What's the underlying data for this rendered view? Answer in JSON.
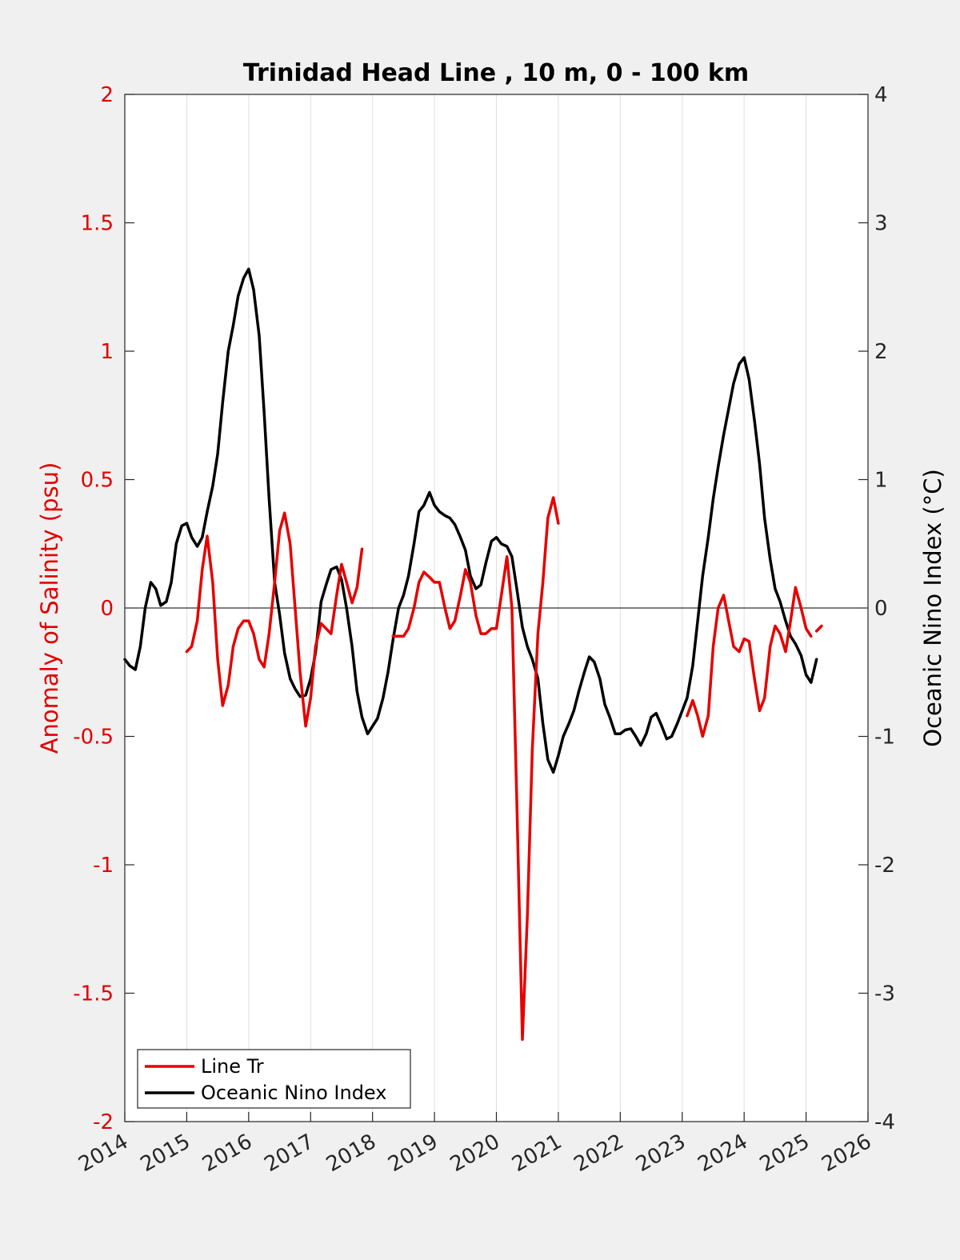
{
  "colors": {
    "figure_background": "#f0f0f0",
    "plot_background": "#ffffff",
    "salinity": "#e60000",
    "oni": "#000000",
    "left_axis": "#e00000",
    "right_axis": "#262626"
  },
  "chart_data": {
    "type": "line",
    "title": "Trinidad Head Line , 10 m, 0 - 100 km",
    "xlabel": "",
    "ylabel": "Anomaly of Salinity (psu)",
    "ylabel_right": "Oceanic Nino Index (°C)",
    "xlim": [
      2014,
      2026
    ],
    "ylim": [
      -2,
      2
    ],
    "ylim_right": [
      -4,
      4
    ],
    "x_ticks": [
      "2014",
      "2015",
      "2016",
      "2017",
      "2018",
      "2019",
      "2020",
      "2021",
      "2022",
      "2023",
      "2024",
      "2025",
      "2026"
    ],
    "y_ticks": [
      "-2",
      "-1.5",
      "-1",
      "-0.5",
      "0",
      "0.5",
      "1",
      "1.5",
      "2"
    ],
    "y_ticks_right": [
      "-4",
      "-3",
      "-2",
      "-1",
      "0",
      "1",
      "2",
      "3",
      "4"
    ],
    "grid": "vertical",
    "zero_line": true,
    "legend_position": "bottom-left",
    "series": [
      {
        "name": "Line Tr",
        "axis": "left",
        "color": "#e60000",
        "segments": [
          [
            [
              2015.0,
              -0.17
            ],
            [
              2015.08,
              -0.15
            ],
            [
              2015.17,
              -0.05
            ],
            [
              2015.25,
              0.15
            ],
            [
              2015.33,
              0.28
            ],
            [
              2015.42,
              0.1
            ],
            [
              2015.5,
              -0.2
            ],
            [
              2015.58,
              -0.38
            ],
            [
              2015.67,
              -0.3
            ],
            [
              2015.75,
              -0.15
            ],
            [
              2015.83,
              -0.08
            ],
            [
              2015.92,
              -0.05
            ],
            [
              2016.0,
              -0.05
            ],
            [
              2016.08,
              -0.1
            ],
            [
              2016.17,
              -0.2
            ],
            [
              2016.25,
              -0.23
            ],
            [
              2016.33,
              -0.1
            ],
            [
              2016.42,
              0.1
            ],
            [
              2016.5,
              0.3
            ],
            [
              2016.58,
              0.37
            ],
            [
              2016.67,
              0.25
            ],
            [
              2016.75,
              0.0
            ],
            [
              2016.83,
              -0.25
            ],
            [
              2016.92,
              -0.46
            ],
            [
              2017.0,
              -0.35
            ],
            [
              2017.08,
              -0.15
            ],
            [
              2017.17,
              -0.06
            ],
            [
              2017.25,
              -0.08
            ],
            [
              2017.33,
              -0.1
            ],
            [
              2017.42,
              0.05
            ],
            [
              2017.5,
              0.17
            ],
            [
              2017.58,
              0.1
            ],
            [
              2017.67,
              0.02
            ],
            [
              2017.75,
              0.08
            ],
            [
              2017.83,
              0.23
            ]
          ],
          [
            [
              2018.33,
              -0.11
            ],
            [
              2018.42,
              -0.11
            ],
            [
              2018.5,
              -0.11
            ],
            [
              2018.58,
              -0.08
            ],
            [
              2018.67,
              0.0
            ],
            [
              2018.75,
              0.1
            ],
            [
              2018.83,
              0.14
            ],
            [
              2018.92,
              0.12
            ],
            [
              2019.0,
              0.1
            ],
            [
              2019.08,
              0.1
            ],
            [
              2019.17,
              0.0
            ],
            [
              2019.25,
              -0.08
            ],
            [
              2019.33,
              -0.05
            ],
            [
              2019.42,
              0.05
            ],
            [
              2019.5,
              0.15
            ],
            [
              2019.58,
              0.1
            ],
            [
              2019.67,
              -0.03
            ],
            [
              2019.75,
              -0.1
            ],
            [
              2019.83,
              -0.1
            ],
            [
              2019.92,
              -0.08
            ],
            [
              2020.0,
              -0.08
            ],
            [
              2020.08,
              0.05
            ],
            [
              2020.17,
              0.2
            ],
            [
              2020.25,
              0.0
            ],
            [
              2020.33,
              -0.75
            ],
            [
              2020.42,
              -1.68
            ],
            [
              2020.5,
              -1.2
            ],
            [
              2020.58,
              -0.55
            ],
            [
              2020.67,
              -0.1
            ],
            [
              2020.75,
              0.1
            ],
            [
              2020.83,
              0.35
            ],
            [
              2020.92,
              0.43
            ],
            [
              2021.0,
              0.33
            ]
          ],
          [
            [
              2023.08,
              -0.42
            ],
            [
              2023.17,
              -0.36
            ],
            [
              2023.25,
              -0.42
            ],
            [
              2023.33,
              -0.5
            ],
            [
              2023.42,
              -0.42
            ],
            [
              2023.5,
              -0.15
            ],
            [
              2023.58,
              0.0
            ],
            [
              2023.67,
              0.05
            ],
            [
              2023.75,
              -0.05
            ],
            [
              2023.83,
              -0.15
            ],
            [
              2023.92,
              -0.17
            ],
            [
              2024.0,
              -0.12
            ],
            [
              2024.08,
              -0.13
            ],
            [
              2024.17,
              -0.28
            ],
            [
              2024.25,
              -0.4
            ],
            [
              2024.33,
              -0.35
            ],
            [
              2024.42,
              -0.15
            ],
            [
              2024.5,
              -0.07
            ],
            [
              2024.58,
              -0.1
            ],
            [
              2024.67,
              -0.17
            ],
            [
              2024.75,
              -0.05
            ],
            [
              2024.83,
              0.08
            ],
            [
              2024.92,
              0.0
            ],
            [
              2025.0,
              -0.08
            ],
            [
              2025.08,
              -0.11
            ]
          ],
          [
            [
              2025.17,
              -0.09
            ],
            [
              2025.25,
              -0.07
            ]
          ]
        ]
      },
      {
        "name": "Oceanic Nino Index",
        "axis": "right",
        "color": "#000000",
        "points": [
          [
            2014.0,
            -0.4
          ],
          [
            2014.08,
            -0.45
          ],
          [
            2014.17,
            -0.48
          ],
          [
            2014.25,
            -0.3
          ],
          [
            2014.33,
            0.0
          ],
          [
            2014.42,
            0.2
          ],
          [
            2014.5,
            0.15
          ],
          [
            2014.58,
            0.02
          ],
          [
            2014.67,
            0.05
          ],
          [
            2014.75,
            0.2
          ],
          [
            2014.83,
            0.5
          ],
          [
            2014.92,
            0.64
          ],
          [
            2015.0,
            0.66
          ],
          [
            2015.08,
            0.55
          ],
          [
            2015.17,
            0.48
          ],
          [
            2015.25,
            0.55
          ],
          [
            2015.33,
            0.75
          ],
          [
            2015.42,
            0.95
          ],
          [
            2015.5,
            1.2
          ],
          [
            2015.58,
            1.6
          ],
          [
            2015.67,
            2.0
          ],
          [
            2015.75,
            2.2
          ],
          [
            2015.83,
            2.43
          ],
          [
            2015.92,
            2.57
          ],
          [
            2016.0,
            2.64
          ],
          [
            2016.08,
            2.48
          ],
          [
            2016.17,
            2.12
          ],
          [
            2016.25,
            1.52
          ],
          [
            2016.33,
            0.85
          ],
          [
            2016.42,
            0.2
          ],
          [
            2016.5,
            -0.05
          ],
          [
            2016.58,
            -0.35
          ],
          [
            2016.67,
            -0.55
          ],
          [
            2016.75,
            -0.63
          ],
          [
            2016.83,
            -0.69
          ],
          [
            2016.92,
            -0.68
          ],
          [
            2017.0,
            -0.55
          ],
          [
            2017.08,
            -0.35
          ],
          [
            2017.17,
            0.05
          ],
          [
            2017.25,
            0.18
          ],
          [
            2017.33,
            0.3
          ],
          [
            2017.42,
            0.32
          ],
          [
            2017.5,
            0.22
          ],
          [
            2017.58,
            0.0
          ],
          [
            2017.67,
            -0.3
          ],
          [
            2017.75,
            -0.65
          ],
          [
            2017.83,
            -0.85
          ],
          [
            2017.92,
            -0.98
          ],
          [
            2018.0,
            -0.92
          ],
          [
            2018.08,
            -0.86
          ],
          [
            2018.17,
            -0.7
          ],
          [
            2018.25,
            -0.5
          ],
          [
            2018.33,
            -0.25
          ],
          [
            2018.42,
            0.0
          ],
          [
            2018.5,
            0.1
          ],
          [
            2018.58,
            0.25
          ],
          [
            2018.67,
            0.5
          ],
          [
            2018.75,
            0.75
          ],
          [
            2018.83,
            0.8
          ],
          [
            2018.92,
            0.9
          ],
          [
            2019.0,
            0.8
          ],
          [
            2019.08,
            0.75
          ],
          [
            2019.17,
            0.72
          ],
          [
            2019.25,
            0.7
          ],
          [
            2019.33,
            0.65
          ],
          [
            2019.42,
            0.55
          ],
          [
            2019.5,
            0.45
          ],
          [
            2019.58,
            0.25
          ],
          [
            2019.67,
            0.15
          ],
          [
            2019.75,
            0.18
          ],
          [
            2019.83,
            0.35
          ],
          [
            2019.92,
            0.52
          ],
          [
            2020.0,
            0.55
          ],
          [
            2020.08,
            0.5
          ],
          [
            2020.17,
            0.48
          ],
          [
            2020.25,
            0.4
          ],
          [
            2020.33,
            0.15
          ],
          [
            2020.42,
            -0.15
          ],
          [
            2020.5,
            -0.3
          ],
          [
            2020.58,
            -0.4
          ],
          [
            2020.67,
            -0.55
          ],
          [
            2020.75,
            -0.9
          ],
          [
            2020.83,
            -1.18
          ],
          [
            2020.92,
            -1.28
          ],
          [
            2021.0,
            -1.15
          ],
          [
            2021.08,
            -1.0
          ],
          [
            2021.17,
            -0.9
          ],
          [
            2021.25,
            -0.8
          ],
          [
            2021.33,
            -0.65
          ],
          [
            2021.42,
            -0.5
          ],
          [
            2021.5,
            -0.38
          ],
          [
            2021.58,
            -0.42
          ],
          [
            2021.67,
            -0.55
          ],
          [
            2021.75,
            -0.75
          ],
          [
            2021.83,
            -0.85
          ],
          [
            2021.92,
            -0.98
          ],
          [
            2022.0,
            -0.98
          ],
          [
            2022.08,
            -0.95
          ],
          [
            2022.17,
            -0.94
          ],
          [
            2022.25,
            -1.0
          ],
          [
            2022.33,
            -1.07
          ],
          [
            2022.42,
            -0.98
          ],
          [
            2022.5,
            -0.85
          ],
          [
            2022.58,
            -0.82
          ],
          [
            2022.67,
            -0.92
          ],
          [
            2022.75,
            -1.02
          ],
          [
            2022.83,
            -1.0
          ],
          [
            2022.92,
            -0.9
          ],
          [
            2023.0,
            -0.8
          ],
          [
            2023.08,
            -0.7
          ],
          [
            2023.17,
            -0.45
          ],
          [
            2023.25,
            -0.1
          ],
          [
            2023.33,
            0.25
          ],
          [
            2023.42,
            0.55
          ],
          [
            2023.5,
            0.85
          ],
          [
            2023.58,
            1.1
          ],
          [
            2023.67,
            1.35
          ],
          [
            2023.75,
            1.55
          ],
          [
            2023.83,
            1.75
          ],
          [
            2023.92,
            1.9
          ],
          [
            2024.0,
            1.95
          ],
          [
            2024.08,
            1.78
          ],
          [
            2024.17,
            1.45
          ],
          [
            2024.25,
            1.12
          ],
          [
            2024.33,
            0.7
          ],
          [
            2024.42,
            0.38
          ],
          [
            2024.5,
            0.15
          ],
          [
            2024.58,
            0.05
          ],
          [
            2024.67,
            -0.1
          ],
          [
            2024.75,
            -0.22
          ],
          [
            2024.83,
            -0.28
          ],
          [
            2024.92,
            -0.37
          ],
          [
            2025.0,
            -0.52
          ],
          [
            2025.08,
            -0.58
          ],
          [
            2025.17,
            -0.4
          ]
        ]
      }
    ]
  }
}
